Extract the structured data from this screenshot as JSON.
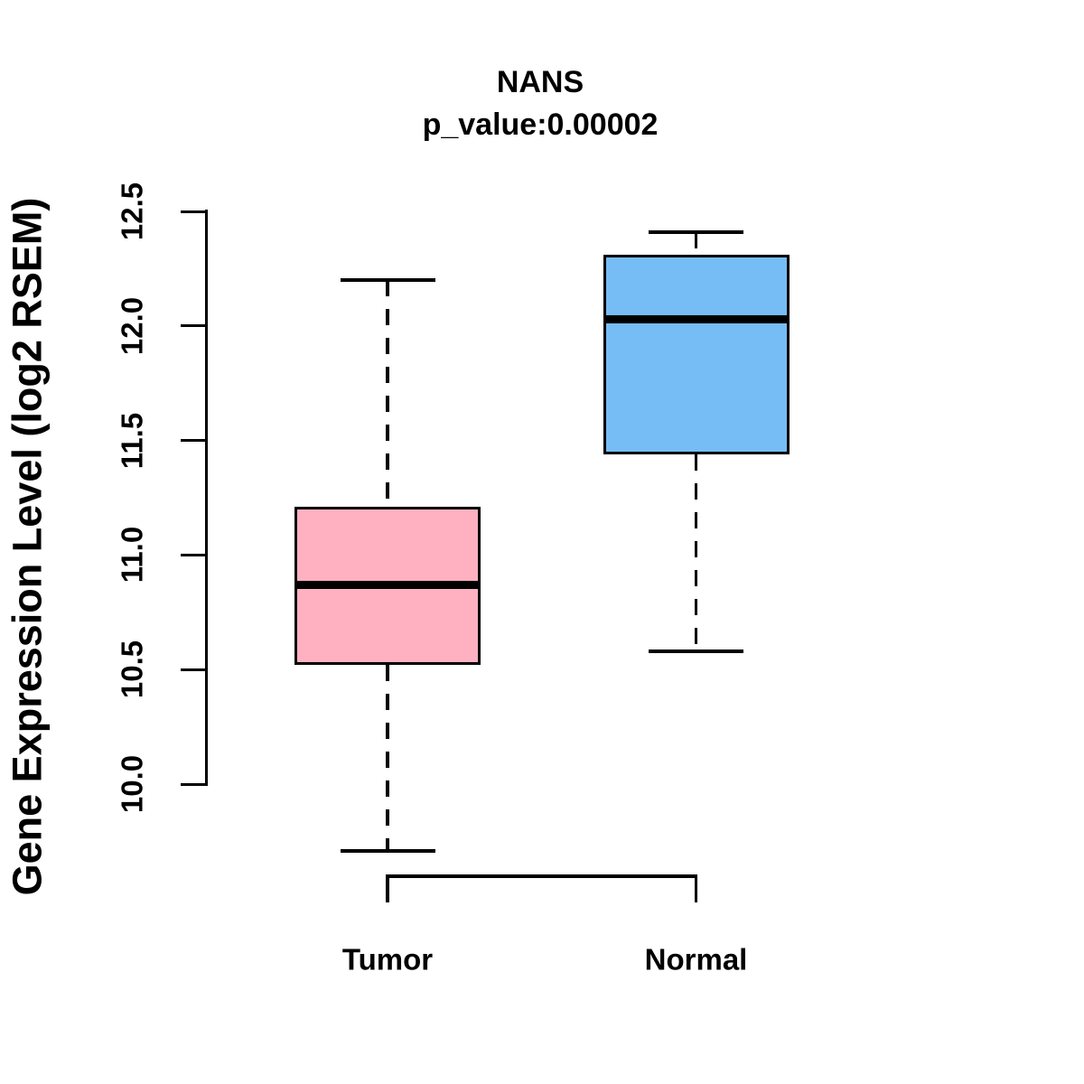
{
  "header": {
    "title": "NANS",
    "subtitle": "p_value:0.00002"
  },
  "stats": {
    "gene": "NANS",
    "p_value": 2e-05
  },
  "chart_data": {
    "type": "boxplot",
    "title": "NANS",
    "subtitle": "p_value:0.00002",
    "ylabel": "Gene Expression Level (log2 RSEM)",
    "xlabel": "",
    "categories": [
      "Tumor",
      "Normal"
    ],
    "series": [
      {
        "name": "Tumor",
        "color": "#FFB1C1",
        "whisker_low": 9.71,
        "q1": 10.52,
        "median": 10.87,
        "q3": 11.21,
        "whisker_high": 12.2
      },
      {
        "name": "Normal",
        "color": "#76BDF6",
        "whisker_low": 10.58,
        "q1": 11.44,
        "median": 12.03,
        "q3": 12.31,
        "whisker_high": 12.41
      }
    ],
    "yticks": [
      {
        "label": "10.0",
        "value": 10.0
      },
      {
        "label": "10.5",
        "value": 10.5
      },
      {
        "label": "11.0",
        "value": 11.0
      },
      {
        "label": "11.5",
        "value": 11.5
      },
      {
        "label": "12.0",
        "value": 12.0
      },
      {
        "label": "12.5",
        "value": 12.5
      }
    ],
    "ylim": [
      9.6,
      12.55
    ],
    "grid": false,
    "legend": false,
    "box_border_color": "#000000",
    "median_color": "#000000",
    "whisker_style": "dashed"
  }
}
